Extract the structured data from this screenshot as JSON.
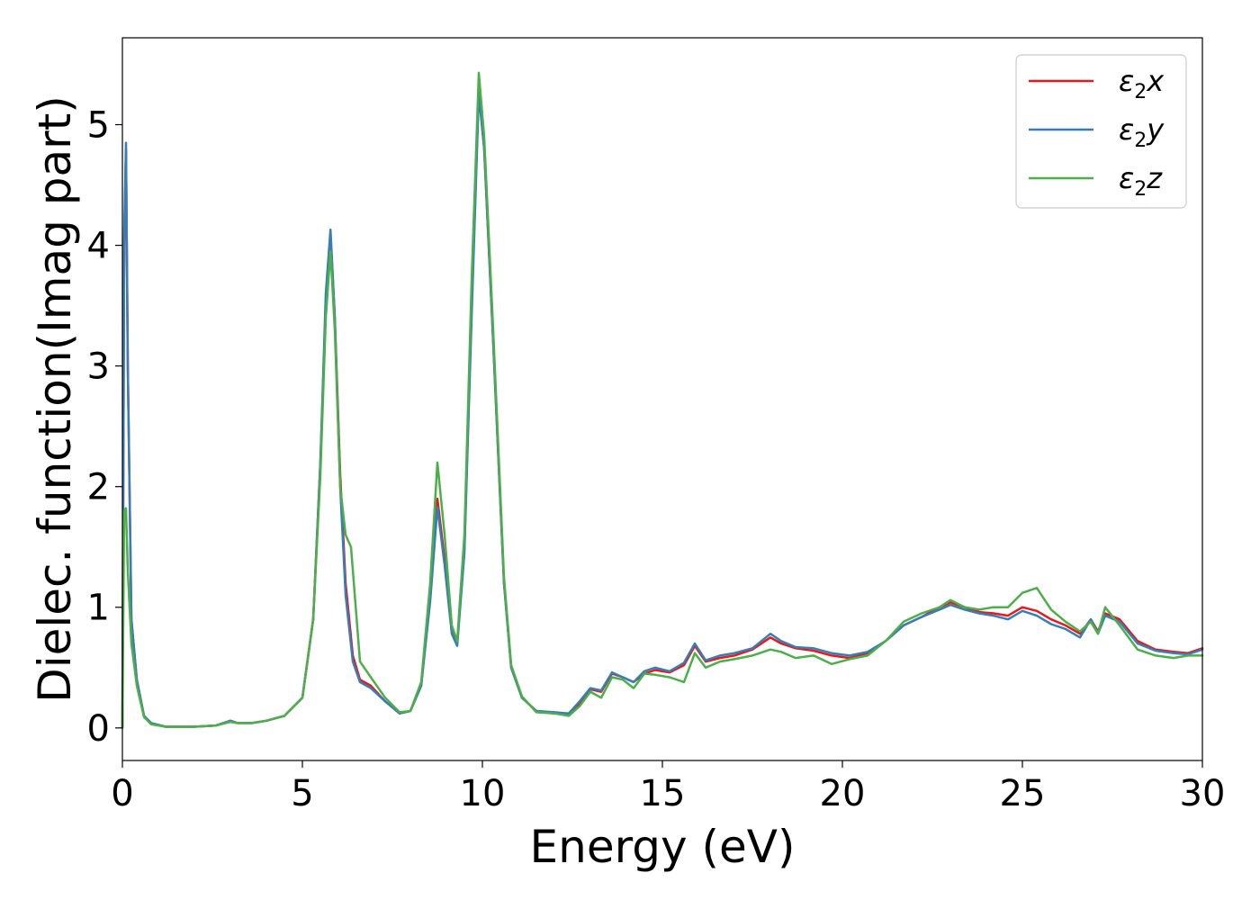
{
  "chart_data": {
    "type": "line",
    "title": "",
    "xlabel": "Energy (eV)",
    "ylabel": "Dielec. function(Imag part)",
    "xlim": [
      0,
      30
    ],
    "ylim": [
      -0.27,
      5.72
    ],
    "xticks": [
      0,
      5,
      10,
      15,
      20,
      25,
      30
    ],
    "xtick_labels": [
      "0",
      "5",
      "10",
      "15",
      "20",
      "25",
      "30"
    ],
    "yticks": [
      0,
      1,
      2,
      3,
      4,
      5
    ],
    "ytick_labels": [
      "0",
      "1",
      "2",
      "3",
      "4",
      "5"
    ],
    "grid": false,
    "legend": {
      "placement": "top-right"
    },
    "series": [
      {
        "name": "ε₂x",
        "legend_base": "ε",
        "legend_sub": "2",
        "legend_tail": "x",
        "color": "#e41a1c",
        "points": [
          [
            0,
            0
          ],
          [
            0.05,
            4.0
          ],
          [
            0.1,
            4.8
          ],
          [
            0.15,
            3.0
          ],
          [
            0.25,
            0.9
          ],
          [
            0.4,
            0.4
          ],
          [
            0.6,
            0.1
          ],
          [
            0.8,
            0.04
          ],
          [
            1.2,
            0.01
          ],
          [
            2,
            0.01
          ],
          [
            2.6,
            0.02
          ],
          [
            3,
            0.06
          ],
          [
            3.2,
            0.04
          ],
          [
            3.6,
            0.04
          ],
          [
            4,
            0.06
          ],
          [
            4.5,
            0.1
          ],
          [
            5,
            0.25
          ],
          [
            5.3,
            0.9
          ],
          [
            5.5,
            2.2
          ],
          [
            5.65,
            3.5
          ],
          [
            5.78,
            4.1
          ],
          [
            5.9,
            3.4
          ],
          [
            6.05,
            2.1
          ],
          [
            6.2,
            1.2
          ],
          [
            6.4,
            0.6
          ],
          [
            6.6,
            0.4
          ],
          [
            6.9,
            0.35
          ],
          [
            7.3,
            0.22
          ],
          [
            7.7,
            0.12
          ],
          [
            8,
            0.14
          ],
          [
            8.3,
            0.35
          ],
          [
            8.55,
            1.1
          ],
          [
            8.75,
            1.9
          ],
          [
            8.95,
            1.4
          ],
          [
            9.15,
            0.8
          ],
          [
            9.3,
            0.7
          ],
          [
            9.5,
            1.5
          ],
          [
            9.7,
            3.5
          ],
          [
            9.9,
            5.3
          ],
          [
            10.05,
            4.8
          ],
          [
            10.3,
            3.2
          ],
          [
            10.6,
            1.2
          ],
          [
            10.8,
            0.5
          ],
          [
            11.1,
            0.25
          ],
          [
            11.5,
            0.14
          ],
          [
            12,
            0.12
          ],
          [
            12.4,
            0.11
          ],
          [
            12.7,
            0.2
          ],
          [
            13,
            0.32
          ],
          [
            13.3,
            0.3
          ],
          [
            13.6,
            0.45
          ],
          [
            13.9,
            0.42
          ],
          [
            14.2,
            0.38
          ],
          [
            14.5,
            0.45
          ],
          [
            14.8,
            0.48
          ],
          [
            15.2,
            0.46
          ],
          [
            15.6,
            0.52
          ],
          [
            15.9,
            0.68
          ],
          [
            16.2,
            0.55
          ],
          [
            16.6,
            0.58
          ],
          [
            17,
            0.6
          ],
          [
            17.5,
            0.65
          ],
          [
            18,
            0.75
          ],
          [
            18.3,
            0.7
          ],
          [
            18.7,
            0.66
          ],
          [
            19.2,
            0.64
          ],
          [
            19.7,
            0.6
          ],
          [
            20.2,
            0.58
          ],
          [
            20.7,
            0.62
          ],
          [
            21.2,
            0.72
          ],
          [
            21.7,
            0.85
          ],
          [
            22.2,
            0.92
          ],
          [
            22.7,
            1.0
          ],
          [
            23,
            1.04
          ],
          [
            23.4,
            1.0
          ],
          [
            23.8,
            0.96
          ],
          [
            24.2,
            0.95
          ],
          [
            24.6,
            0.93
          ],
          [
            25,
            1.0
          ],
          [
            25.4,
            0.97
          ],
          [
            25.8,
            0.9
          ],
          [
            26.2,
            0.85
          ],
          [
            26.6,
            0.78
          ],
          [
            26.9,
            0.9
          ],
          [
            27.1,
            0.8
          ],
          [
            27.3,
            0.95
          ],
          [
            27.7,
            0.9
          ],
          [
            28.2,
            0.72
          ],
          [
            28.7,
            0.65
          ],
          [
            29.2,
            0.63
          ],
          [
            29.6,
            0.62
          ],
          [
            30,
            0.66
          ]
        ]
      },
      {
        "name": "ε₂y",
        "legend_base": "ε",
        "legend_sub": "2",
        "legend_tail": "y",
        "color": "#377eb8",
        "points": [
          [
            0,
            0
          ],
          [
            0.05,
            4.1
          ],
          [
            0.1,
            4.85
          ],
          [
            0.15,
            3.0
          ],
          [
            0.25,
            0.9
          ],
          [
            0.4,
            0.4
          ],
          [
            0.6,
            0.1
          ],
          [
            0.8,
            0.04
          ],
          [
            1.2,
            0.01
          ],
          [
            2,
            0.01
          ],
          [
            2.6,
            0.02
          ],
          [
            3,
            0.06
          ],
          [
            3.2,
            0.04
          ],
          [
            3.6,
            0.04
          ],
          [
            4,
            0.06
          ],
          [
            4.5,
            0.1
          ],
          [
            5,
            0.25
          ],
          [
            5.3,
            0.9
          ],
          [
            5.5,
            2.2
          ],
          [
            5.65,
            3.6
          ],
          [
            5.78,
            4.13
          ],
          [
            5.9,
            3.4
          ],
          [
            6.05,
            2.0
          ],
          [
            6.2,
            1.1
          ],
          [
            6.4,
            0.55
          ],
          [
            6.6,
            0.38
          ],
          [
            6.9,
            0.33
          ],
          [
            7.3,
            0.22
          ],
          [
            7.7,
            0.12
          ],
          [
            8,
            0.14
          ],
          [
            8.3,
            0.35
          ],
          [
            8.55,
            1.05
          ],
          [
            8.75,
            1.83
          ],
          [
            8.95,
            1.35
          ],
          [
            9.15,
            0.78
          ],
          [
            9.3,
            0.68
          ],
          [
            9.5,
            1.45
          ],
          [
            9.7,
            3.4
          ],
          [
            9.9,
            5.25
          ],
          [
            10.05,
            4.8
          ],
          [
            10.3,
            3.2
          ],
          [
            10.6,
            1.2
          ],
          [
            10.8,
            0.5
          ],
          [
            11.1,
            0.25
          ],
          [
            11.5,
            0.14
          ],
          [
            12,
            0.13
          ],
          [
            12.4,
            0.12
          ],
          [
            12.7,
            0.22
          ],
          [
            13,
            0.33
          ],
          [
            13.3,
            0.31
          ],
          [
            13.6,
            0.46
          ],
          [
            13.9,
            0.42
          ],
          [
            14.2,
            0.38
          ],
          [
            14.5,
            0.47
          ],
          [
            14.8,
            0.5
          ],
          [
            15.2,
            0.47
          ],
          [
            15.6,
            0.54
          ],
          [
            15.9,
            0.7
          ],
          [
            16.2,
            0.56
          ],
          [
            16.6,
            0.6
          ],
          [
            17,
            0.62
          ],
          [
            17.5,
            0.66
          ],
          [
            18,
            0.78
          ],
          [
            18.3,
            0.72
          ],
          [
            18.7,
            0.67
          ],
          [
            19.2,
            0.66
          ],
          [
            19.7,
            0.62
          ],
          [
            20.2,
            0.6
          ],
          [
            20.7,
            0.63
          ],
          [
            21.2,
            0.72
          ],
          [
            21.7,
            0.85
          ],
          [
            22.2,
            0.92
          ],
          [
            22.7,
            0.98
          ],
          [
            23,
            1.02
          ],
          [
            23.4,
            0.98
          ],
          [
            23.8,
            0.95
          ],
          [
            24.2,
            0.93
          ],
          [
            24.6,
            0.9
          ],
          [
            25,
            0.97
          ],
          [
            25.4,
            0.93
          ],
          [
            25.8,
            0.86
          ],
          [
            26.2,
            0.82
          ],
          [
            26.6,
            0.75
          ],
          [
            26.9,
            0.9
          ],
          [
            27.1,
            0.78
          ],
          [
            27.3,
            0.93
          ],
          [
            27.7,
            0.88
          ],
          [
            28.2,
            0.7
          ],
          [
            28.7,
            0.64
          ],
          [
            29.2,
            0.62
          ],
          [
            29.6,
            0.61
          ],
          [
            30,
            0.65
          ]
        ]
      },
      {
        "name": "ε₂z",
        "legend_base": "ε",
        "legend_sub": "2",
        "legend_tail": "z",
        "color": "#4daf4a",
        "points": [
          [
            0,
            0
          ],
          [
            0.05,
            1.8
          ],
          [
            0.1,
            1.82
          ],
          [
            0.15,
            1.3
          ],
          [
            0.25,
            0.7
          ],
          [
            0.4,
            0.35
          ],
          [
            0.6,
            0.09
          ],
          [
            0.8,
            0.03
          ],
          [
            1.2,
            0.01
          ],
          [
            2,
            0.01
          ],
          [
            2.6,
            0.02
          ],
          [
            3,
            0.05
          ],
          [
            3.2,
            0.04
          ],
          [
            3.6,
            0.04
          ],
          [
            4,
            0.06
          ],
          [
            4.5,
            0.1
          ],
          [
            5,
            0.25
          ],
          [
            5.3,
            0.9
          ],
          [
            5.5,
            2.1
          ],
          [
            5.65,
            3.4
          ],
          [
            5.78,
            3.95
          ],
          [
            5.9,
            3.3
          ],
          [
            6.05,
            2.0
          ],
          [
            6.2,
            1.6
          ],
          [
            6.35,
            1.5
          ],
          [
            6.6,
            0.55
          ],
          [
            6.9,
            0.42
          ],
          [
            7.3,
            0.25
          ],
          [
            7.7,
            0.13
          ],
          [
            8,
            0.14
          ],
          [
            8.3,
            0.38
          ],
          [
            8.55,
            1.2
          ],
          [
            8.75,
            2.2
          ],
          [
            8.95,
            1.6
          ],
          [
            9.15,
            0.85
          ],
          [
            9.3,
            0.72
          ],
          [
            9.5,
            1.6
          ],
          [
            9.7,
            3.7
          ],
          [
            9.9,
            5.43
          ],
          [
            10.05,
            4.9
          ],
          [
            10.3,
            3.3
          ],
          [
            10.6,
            1.25
          ],
          [
            10.8,
            0.52
          ],
          [
            11.1,
            0.26
          ],
          [
            11.5,
            0.13
          ],
          [
            12,
            0.12
          ],
          [
            12.4,
            0.1
          ],
          [
            12.7,
            0.18
          ],
          [
            13,
            0.3
          ],
          [
            13.3,
            0.25
          ],
          [
            13.6,
            0.42
          ],
          [
            13.9,
            0.4
          ],
          [
            14.2,
            0.33
          ],
          [
            14.5,
            0.45
          ],
          [
            14.8,
            0.44
          ],
          [
            15.2,
            0.42
          ],
          [
            15.6,
            0.38
          ],
          [
            15.9,
            0.62
          ],
          [
            16.2,
            0.5
          ],
          [
            16.6,
            0.55
          ],
          [
            17,
            0.57
          ],
          [
            17.5,
            0.6
          ],
          [
            18,
            0.65
          ],
          [
            18.3,
            0.63
          ],
          [
            18.7,
            0.58
          ],
          [
            19.2,
            0.6
          ],
          [
            19.7,
            0.53
          ],
          [
            20.2,
            0.57
          ],
          [
            20.7,
            0.6
          ],
          [
            21.2,
            0.72
          ],
          [
            21.7,
            0.88
          ],
          [
            22.2,
            0.95
          ],
          [
            22.7,
            1.0
          ],
          [
            23,
            1.06
          ],
          [
            23.4,
            1.0
          ],
          [
            23.8,
            0.98
          ],
          [
            24.2,
            1.0
          ],
          [
            24.6,
            1.0
          ],
          [
            25,
            1.12
          ],
          [
            25.4,
            1.16
          ],
          [
            25.8,
            0.98
          ],
          [
            26.2,
            0.88
          ],
          [
            26.6,
            0.8
          ],
          [
            26.9,
            0.88
          ],
          [
            27.1,
            0.78
          ],
          [
            27.3,
            1.0
          ],
          [
            27.7,
            0.85
          ],
          [
            28.2,
            0.65
          ],
          [
            28.7,
            0.6
          ],
          [
            29.2,
            0.58
          ],
          [
            29.6,
            0.6
          ],
          [
            30,
            0.6
          ]
        ]
      }
    ]
  }
}
